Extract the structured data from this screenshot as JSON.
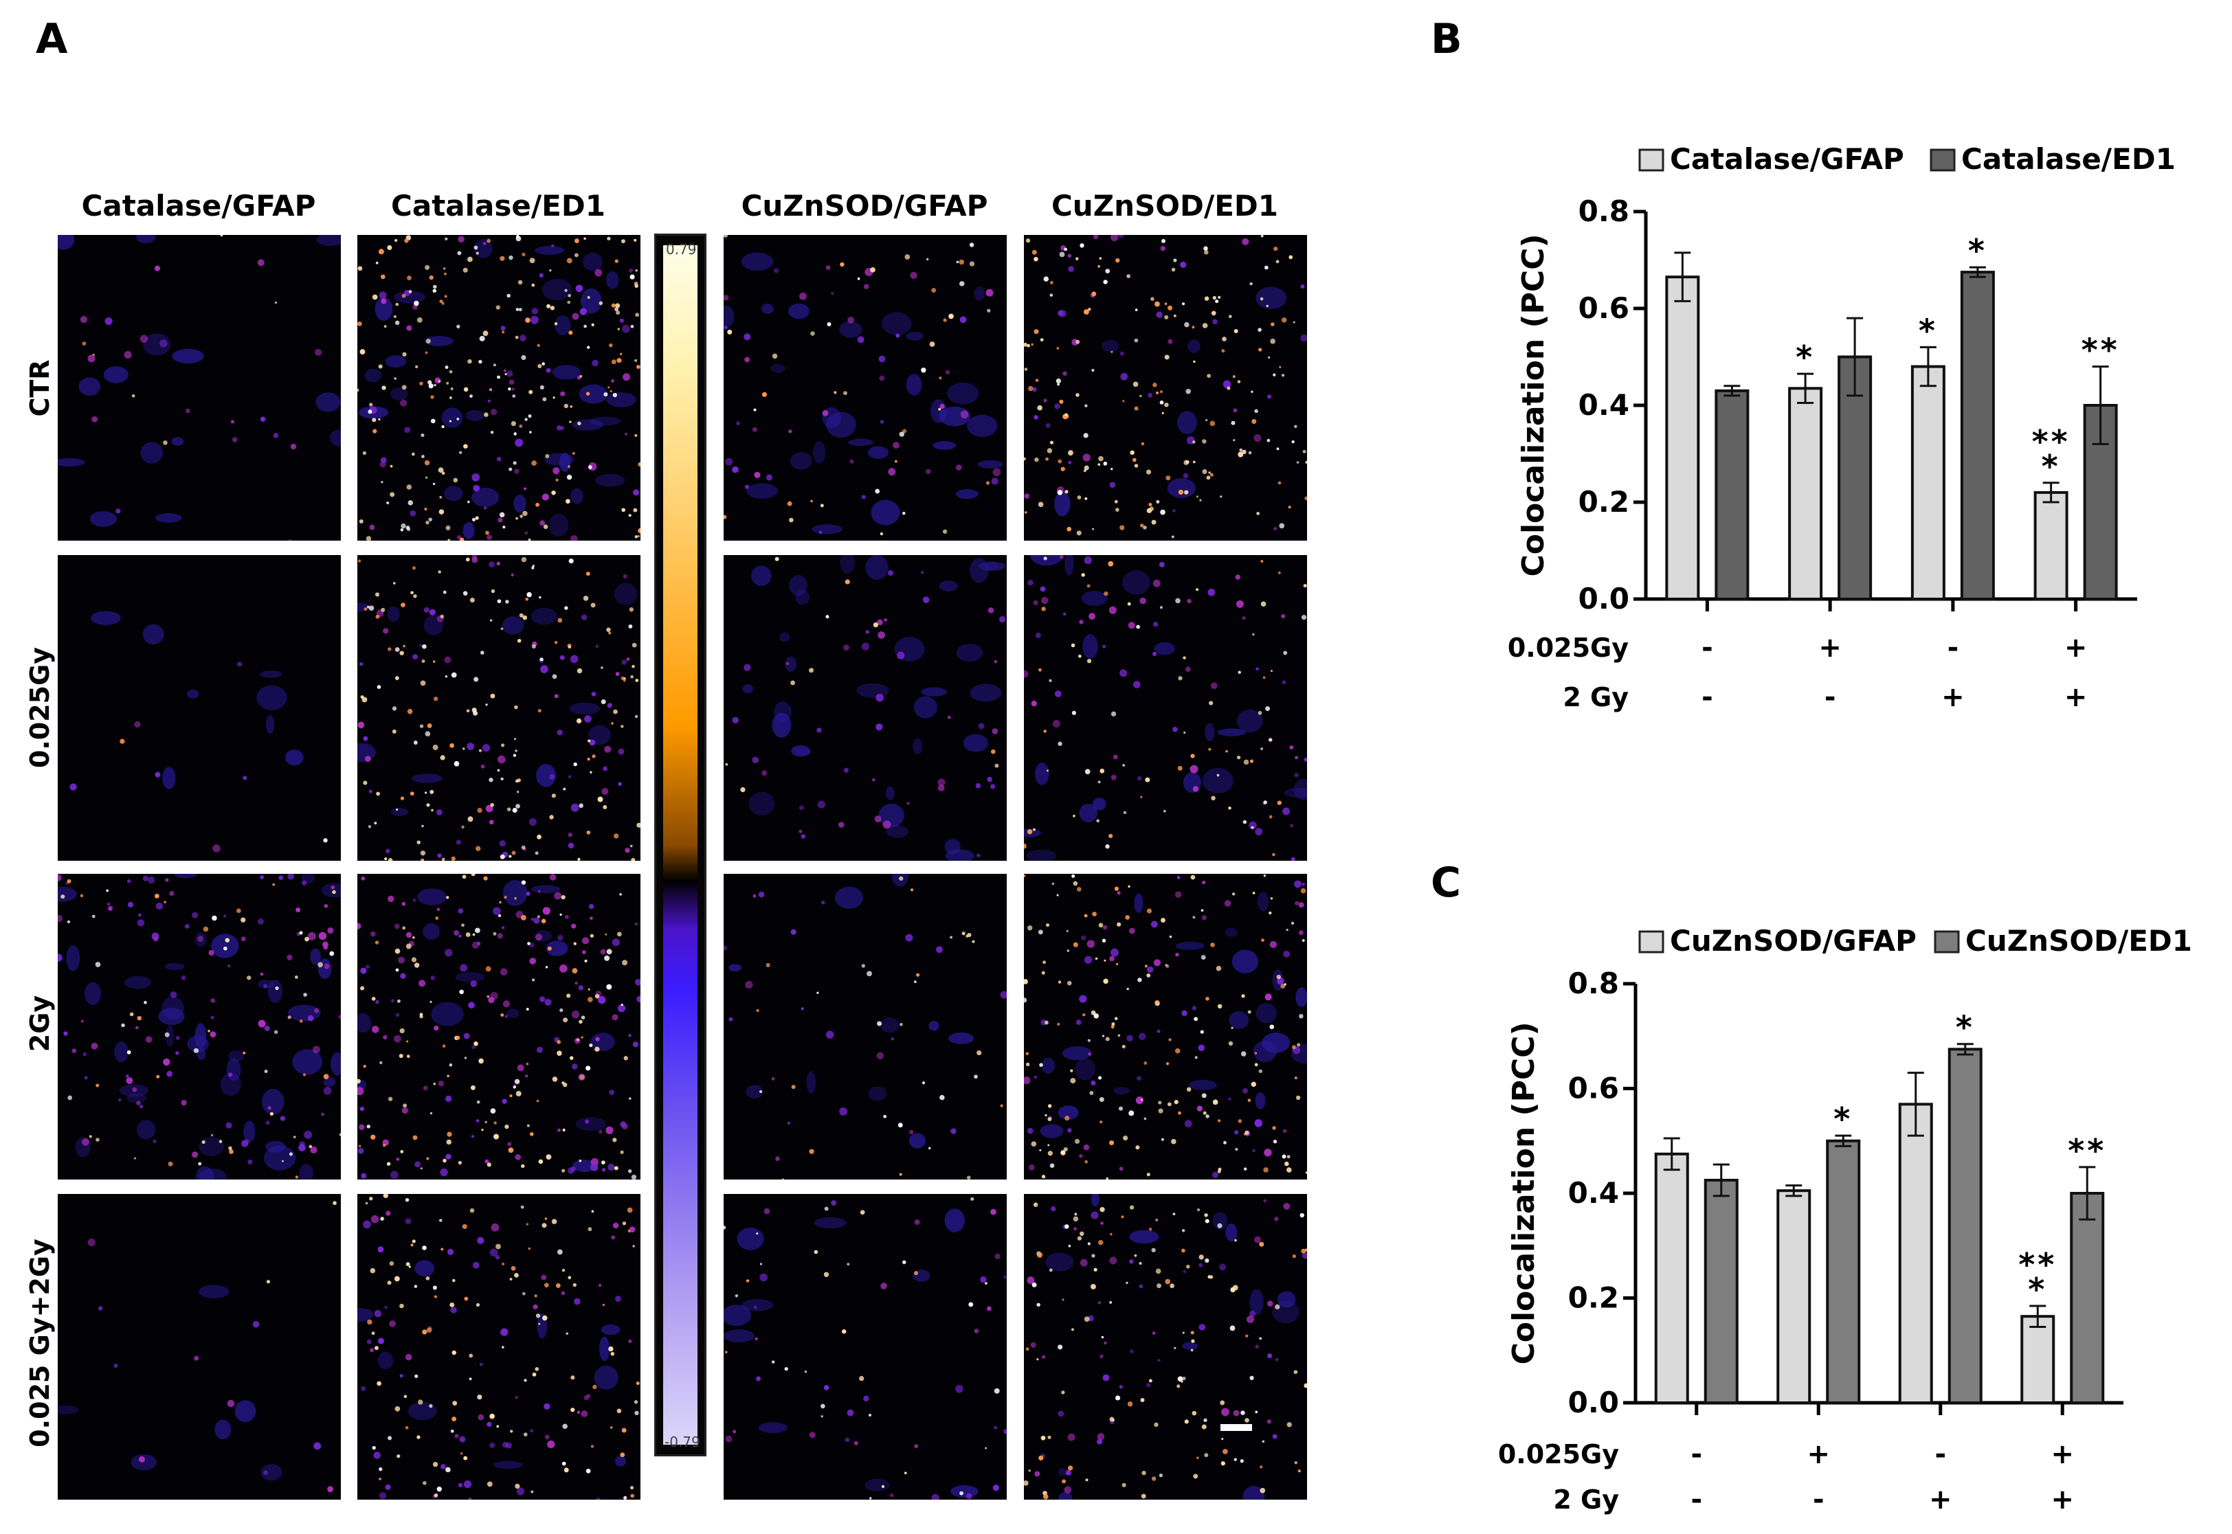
{
  "panels": {
    "a": "A",
    "b": "B",
    "c": "C"
  },
  "image_grid": {
    "col_headers": [
      "Catalase/GFAP",
      "Catalase/ED1",
      "CuZnSOD/GFAP",
      "CuZnSOD/ED1"
    ],
    "row_labels": [
      "CTR",
      "0.025Gy",
      "2Gy",
      "0.025 Gy+2Gy"
    ],
    "colorbar_top": "0.79",
    "colorbar_bottom": "-0.79"
  },
  "chart_data": [
    {
      "type": "bar",
      "panel": "B",
      "ylabel": "Colocalization (PCC)",
      "ylim": [
        0,
        0.8
      ],
      "yticks": [
        "0.0",
        "0.2",
        "0.4",
        "0.6",
        "0.8"
      ],
      "groups": 4,
      "condition_rows": [
        {
          "label": "0.025Gy",
          "values": [
            "-",
            "+",
            "-",
            "+"
          ]
        },
        {
          "label": "2 Gy",
          "values": [
            "-",
            "-",
            "+",
            "+"
          ]
        }
      ],
      "series": [
        {
          "name": "Catalase/GFAP",
          "color": "#dadada",
          "values": [
            0.665,
            0.435,
            0.48,
            0.22
          ],
          "errors": [
            0.05,
            0.03,
            0.04,
            0.02
          ],
          "sig": [
            "",
            "*",
            "*",
            "**\n*"
          ]
        },
        {
          "name": "Catalase/ED1",
          "color": "#626262",
          "values": [
            0.43,
            0.5,
            0.675,
            0.4
          ],
          "errors": [
            0.01,
            0.08,
            0.01,
            0.08
          ],
          "sig": [
            "",
            "",
            "*",
            "**"
          ]
        }
      ]
    },
    {
      "type": "bar",
      "panel": "C",
      "ylabel": "Colocalization (PCC)",
      "ylim": [
        0,
        0.8
      ],
      "yticks": [
        "0.0",
        "0.2",
        "0.4",
        "0.6",
        "0.8"
      ],
      "groups": 4,
      "condition_rows": [
        {
          "label": "0.025Gy",
          "values": [
            "-",
            "+",
            "-",
            "+"
          ]
        },
        {
          "label": "2 Gy",
          "values": [
            "-",
            "-",
            "+",
            "+"
          ]
        }
      ],
      "series": [
        {
          "name": "CuZnSOD/GFAP",
          "color": "#dadada",
          "values": [
            0.475,
            0.405,
            0.57,
            0.165
          ],
          "errors": [
            0.03,
            0.01,
            0.06,
            0.02
          ],
          "sig": [
            "",
            "",
            "",
            "**\n*"
          ]
        },
        {
          "name": "CuZnSOD/ED1",
          "color": "#7e7e7e",
          "values": [
            0.425,
            0.5,
            0.675,
            0.4
          ],
          "errors": [
            0.03,
            0.01,
            0.01,
            0.05
          ],
          "sig": [
            "",
            "*",
            "*",
            "**"
          ]
        }
      ]
    }
  ]
}
